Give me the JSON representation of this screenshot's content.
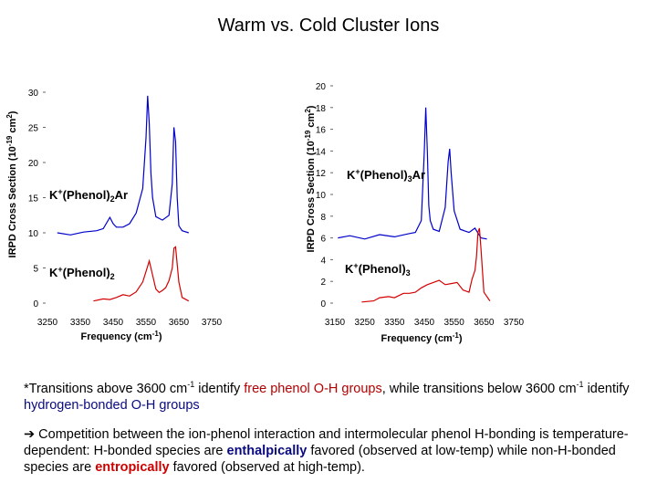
{
  "title": "Warm vs. Cold Cluster Ions",
  "colors": {
    "blue_trace": "#0000cc",
    "red_trace": "#d40000",
    "free_oh": "#b30000",
    "hbond_oh": "#0a0a80"
  },
  "chart_data": [
    {
      "type": "line",
      "ylabel": "IRPD Cross Section (10⁻¹⁹ cm²)",
      "xlabel": "Frequency (cm⁻¹)",
      "xlim": [
        3250,
        3750
      ],
      "ylim": [
        0,
        30
      ],
      "xticks": [
        "3250",
        "3350",
        "3450",
        "3550",
        "3650",
        "3750"
      ],
      "yticks": [
        "0",
        "5",
        "10",
        "15",
        "20",
        "25",
        "30"
      ],
      "series": [
        {
          "name": "K⁺(Phenol)₂Ar",
          "color": "#0000cc",
          "x": [
            3280,
            3320,
            3360,
            3400,
            3420,
            3440,
            3450,
            3460,
            3480,
            3500,
            3520,
            3540,
            3550,
            3555,
            3560,
            3565,
            3570,
            3580,
            3600,
            3620,
            3630,
            3635,
            3640,
            3645,
            3650,
            3660,
            3680
          ],
          "y": [
            10.0,
            9.7,
            10.1,
            10.3,
            10.6,
            12.2,
            11.3,
            10.8,
            10.8,
            11.3,
            12.8,
            16.3,
            23.5,
            29.5,
            25.5,
            18.5,
            15.0,
            12.3,
            11.8,
            12.5,
            17.0,
            25.0,
            23.0,
            15.0,
            11.0,
            10.3,
            10.0
          ]
        },
        {
          "name": "K⁺(Phenol)₂",
          "color": "#d40000",
          "x": [
            3390,
            3420,
            3440,
            3460,
            3480,
            3500,
            3520,
            3540,
            3550,
            3560,
            3570,
            3580,
            3590,
            3600,
            3610,
            3620,
            3630,
            3635,
            3640,
            3645,
            3650,
            3660,
            3680
          ],
          "y": [
            0.3,
            0.6,
            0.5,
            0.8,
            1.2,
            1.0,
            1.6,
            3.0,
            4.5,
            6.0,
            4.0,
            2.0,
            1.5,
            1.8,
            2.2,
            3.2,
            5.0,
            7.8,
            8.0,
            5.5,
            3.0,
            0.8,
            0.3
          ]
        }
      ],
      "labels": [
        {
          "text": "K⁺(Phenol)₂Ar",
          "series": 0
        },
        {
          "text": "K⁺(Phenol)₂",
          "series": 1
        }
      ]
    },
    {
      "type": "line",
      "ylabel": "IRPD Cross Section (10⁻¹⁹ cm²)",
      "xlabel": "Frequency (cm⁻¹)",
      "xlim": [
        3150,
        3750
      ],
      "ylim": [
        0,
        20
      ],
      "xticks": [
        "3150",
        "3250",
        "3350",
        "3450",
        "3550",
        "3650",
        "3750"
      ],
      "yticks": [
        "0",
        "2",
        "4",
        "6",
        "8",
        "10",
        "12",
        "14",
        "16",
        "18",
        "20"
      ],
      "series": [
        {
          "name": "K⁺(Phenol)₃Ar",
          "color": "#0000cc",
          "x": [
            3160,
            3200,
            3250,
            3300,
            3350,
            3400,
            3420,
            3440,
            3450,
            3455,
            3460,
            3465,
            3470,
            3480,
            3500,
            3520,
            3530,
            3535,
            3540,
            3550,
            3570,
            3600,
            3620,
            3640,
            3660
          ],
          "y": [
            6.0,
            6.2,
            5.9,
            6.3,
            6.1,
            6.4,
            6.5,
            7.6,
            14.0,
            18.0,
            14.0,
            9.0,
            7.6,
            6.8,
            6.6,
            8.8,
            13.0,
            14.2,
            12.0,
            8.5,
            6.8,
            6.5,
            6.9,
            6.0,
            5.9
          ]
        },
        {
          "name": "K⁺(Phenol)₃",
          "color": "#d40000",
          "x": [
            3240,
            3280,
            3300,
            3330,
            3350,
            3380,
            3400,
            3420,
            3440,
            3460,
            3480,
            3500,
            3520,
            3540,
            3560,
            3580,
            3600,
            3610,
            3620,
            3625,
            3630,
            3635,
            3640,
            3650,
            3670
          ],
          "y": [
            0.1,
            0.2,
            0.5,
            0.6,
            0.5,
            0.9,
            0.9,
            1.0,
            1.4,
            1.7,
            1.9,
            2.1,
            1.7,
            1.8,
            1.9,
            1.2,
            1.0,
            2.2,
            3.0,
            4.3,
            6.5,
            6.9,
            5.0,
            1.0,
            0.2
          ]
        }
      ],
      "labels": [
        {
          "text": "K⁺(Phenol)₃Ar",
          "series": 0
        },
        {
          "text": "K⁺(Phenol)₃",
          "series": 1
        }
      ]
    }
  ],
  "notes": {
    "line1_a": "*Transitions above 3600 cm",
    "line1_sup1": "-1",
    "line1_b": " identify ",
    "line1_free": "free phenol O-H groups",
    "line1_c": ", while transitions below 3600 cm",
    "line1_sup2": "-1",
    "line1_d": " identify ",
    "line1_hbond": "hydrogen-bonded O-H groups",
    "arrow": "➔",
    "line2_a": " Competition between the ion-phenol interaction and intermolecular phenol H-bonding is temperature-dependent: H-bonded species are ",
    "line2_enth": "enthalpically",
    "line2_b": " favored (observed at low-temp) while non-H-bonded species are ",
    "line2_entr": "entropically",
    "line2_c": " favored (observed at high-temp)."
  }
}
